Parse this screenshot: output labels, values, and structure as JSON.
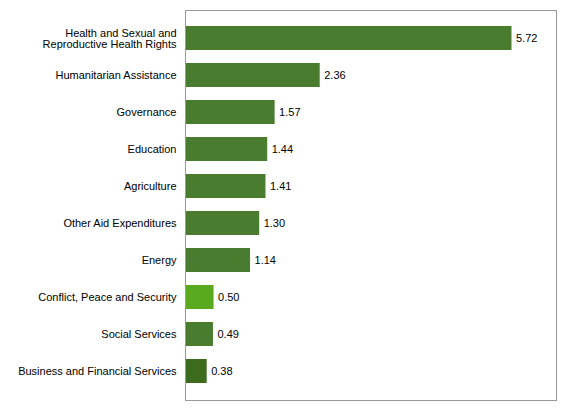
{
  "chart_data": {
    "type": "bar",
    "orientation": "horizontal",
    "categories": [
      "Business and Financial Services",
      "Social Services",
      "Conflict, Peace and Security",
      "Energy",
      "Other Aid Expenditures",
      "Agriculture",
      "Education",
      "Governance",
      "Humanitarian Assistance",
      "Health and Sexual and\nReproductive Health Rights"
    ],
    "values": [
      0.38,
      0.49,
      0.5,
      1.14,
      1.3,
      1.41,
      1.44,
      1.57,
      2.36,
      5.72
    ],
    "value_labels": [
      "0.38",
      "0.49",
      "0.50",
      "1.14",
      "1.30",
      "1.41",
      "1.44",
      "1.57",
      "2.36",
      "5.72"
    ],
    "colors": [
      "#3d6b1e",
      "#4a7c2f",
      "#5aaa20",
      "#4a7c2f",
      "#4a7c2f",
      "#4a7c2f",
      "#4a7c2f",
      "#4a7c2f",
      "#4a7c2f",
      "#4a7c2f"
    ],
    "xlim": [
      0,
      6.5
    ],
    "xticks": [],
    "grid": false,
    "data_labels": true,
    "tick_labels": "y"
  }
}
